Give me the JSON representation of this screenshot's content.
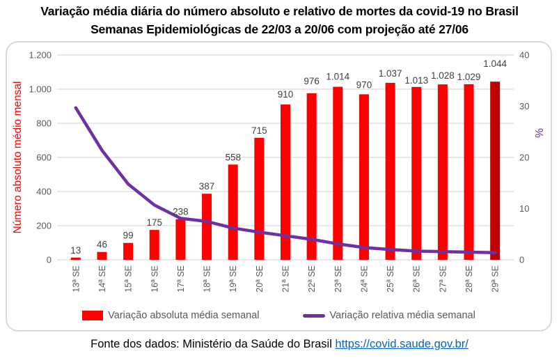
{
  "title": {
    "line1": "Variação média diária do número absoluto e relativo de mortes da covid-19 no Brasil",
    "line2": "Semanas Epidemiológicas de 22/03 a 20/06 com projeção até 27/06"
  },
  "chart_data": {
    "type": "bar+line combo",
    "categories": [
      "13ª SE",
      "14ª SE",
      "15ª SE",
      "16ª SE",
      "17ª SE",
      "18ª SE",
      "19ª SE",
      "20ª SE",
      "21ª SE",
      "22ª SE",
      "23ª SE",
      "24ª SE",
      "25ª SE",
      "26ª SE",
      "27ª SE",
      "28ª SE",
      "29ª SE"
    ],
    "series": [
      {
        "name": "Variação absoluta média semanal",
        "type": "bar",
        "axis": "left",
        "color": "#ff0000",
        "projection_color": "#c00000",
        "projection_index": 16,
        "values": [
          13,
          46,
          99,
          175,
          238,
          387,
          558,
          715,
          910,
          976,
          1014,
          970,
          1037,
          1013,
          1028,
          1029,
          1044
        ],
        "labels": [
          "13",
          "46",
          "99",
          "175",
          "238",
          "387",
          "558",
          "715",
          "910",
          "976",
          "1.014",
          "970",
          "1.037",
          "1.013",
          "1.028",
          "1.029",
          "1.044"
        ],
        "label_dy": [
          0,
          0,
          0,
          0,
          0,
          0,
          0,
          0,
          -4,
          -7,
          -4,
          -3,
          -3,
          1,
          -2,
          0,
          -15
        ]
      },
      {
        "name": "Variação relativa média semanal",
        "type": "line",
        "axis": "right",
        "color": "#7030a0",
        "values": [
          29.7,
          21.4,
          14.8,
          10.7,
          8.1,
          7.5,
          6.2,
          5.4,
          4.7,
          4.0,
          3.1,
          2.4,
          2.0,
          1.7,
          1.6,
          1.5,
          1.4
        ]
      }
    ],
    "left_axis": {
      "title": "Número absoluto médio mensal",
      "color": "#ff0000",
      "min": 0,
      "max": 1200,
      "tick_step": 200,
      "tick_labels": [
        "0",
        "200",
        "400",
        "600",
        "800",
        "1.000",
        "1.200"
      ]
    },
    "right_axis": {
      "title": "%",
      "color": "#7030a0",
      "min": 0,
      "max": 40,
      "tick_step": 10,
      "tick_labels": [
        "0",
        "10",
        "20",
        "30",
        "40"
      ]
    },
    "grid": true,
    "grid_color": "#d9d9d9",
    "tick_text_color": "#595959",
    "data_label_color": "#404040",
    "legend_position": "bottom"
  },
  "legend": {
    "items": [
      {
        "label": "Variação absoluta média semanal",
        "marker": "bar",
        "color": "#ff0000"
      },
      {
        "label": "Variação relativa média semanal",
        "marker": "line",
        "color": "#7030a0"
      }
    ]
  },
  "footer": {
    "text": "Fonte dos dados: Ministério da Saúde do Brasil",
    "link_text": "https://covid.saude.gov.br/",
    "link_href": "https://covid.saude.gov.br/"
  }
}
